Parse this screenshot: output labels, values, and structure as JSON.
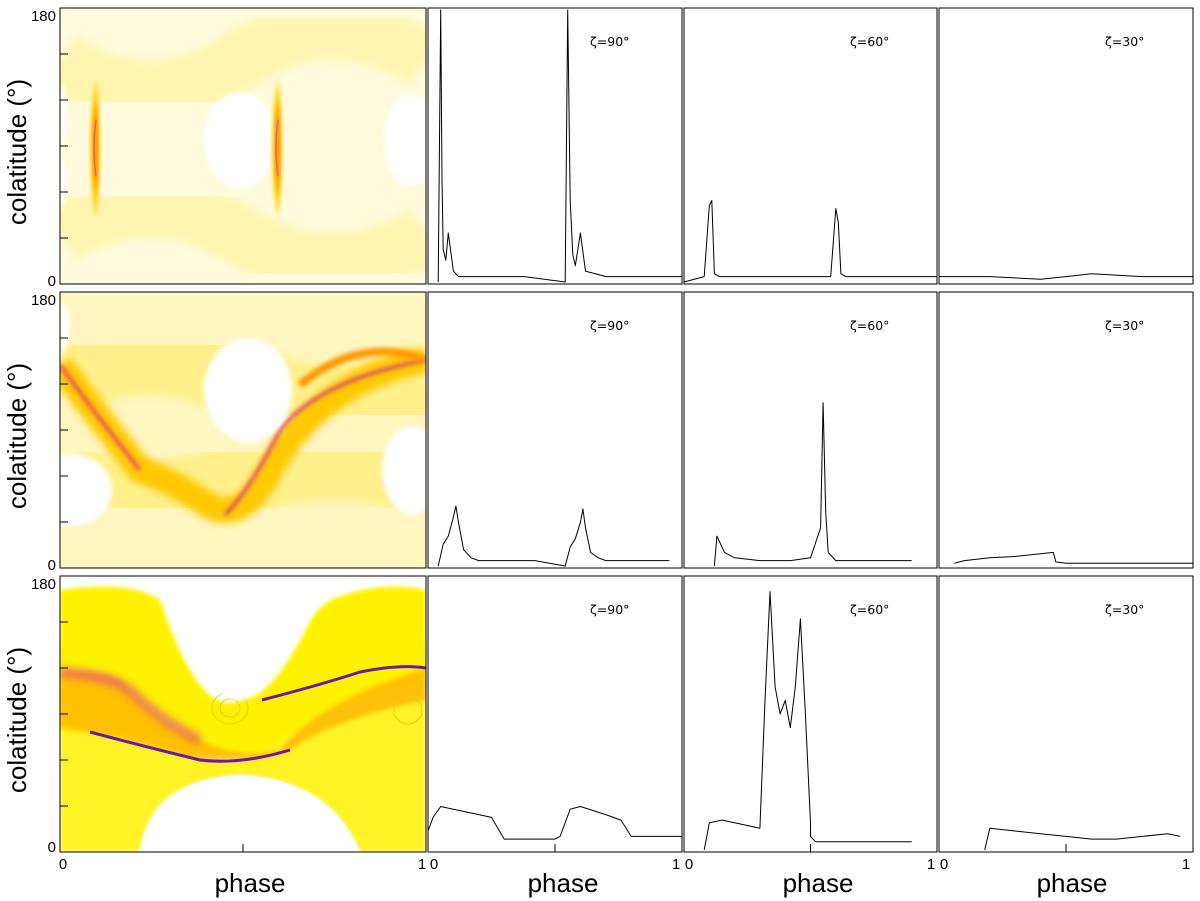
{
  "chart_data": {
    "type": "grid",
    "rows": 3,
    "columns": 4,
    "sky_maps": {
      "type": "heatmap",
      "ylabel": "colatitude (°)",
      "ylim": [
        0,
        180
      ],
      "yticks_labeled": [
        "0",
        "180"
      ],
      "xlim": [
        0,
        1
      ],
      "colormap": [
        "#ffffff",
        "#fff8b0",
        "#ffee00",
        "#ff9900",
        "#e0007a",
        "#5a00a0"
      ]
    },
    "light_curve_labels": [
      "ζ=90°",
      "ζ=60°",
      "ζ=30°"
    ],
    "x_axis": {
      "label": "phase",
      "ticks": [
        "0",
        "1"
      ],
      "xlim": [
        0,
        1
      ]
    },
    "panels": [
      {
        "row": 0,
        "zeta": "ζ=90°",
        "type": "line",
        "x": [
          0.04,
          0.05,
          0.055,
          0.06,
          0.07,
          0.08,
          0.1,
          0.12,
          0.2,
          0.38,
          0.54,
          0.55,
          0.56,
          0.57,
          0.58,
          0.6,
          0.62,
          0.7,
          0.9,
          1.0
        ],
        "y": [
          0,
          1.0,
          0.38,
          0.12,
          0.08,
          0.18,
          0.04,
          0.02,
          0.02,
          0.02,
          0,
          1.0,
          0.3,
          0.1,
          0.06,
          0.18,
          0.04,
          0.02,
          0.02,
          0.02
        ]
      },
      {
        "row": 0,
        "zeta": "ζ=60°",
        "type": "line",
        "x": [
          0.0,
          0.08,
          0.1,
          0.11,
          0.12,
          0.14,
          0.2,
          0.58,
          0.6,
          0.61,
          0.62,
          0.64,
          0.7,
          1.0
        ],
        "y": [
          0,
          0.02,
          0.28,
          0.3,
          0.03,
          0.02,
          0.02,
          0.02,
          0.27,
          0.22,
          0.03,
          0.02,
          0.02,
          0.02
        ]
      },
      {
        "row": 0,
        "zeta": "ζ=30°",
        "type": "line",
        "x": [
          0.0,
          0.2,
          0.4,
          0.5,
          0.6,
          0.8,
          1.0
        ],
        "y": [
          0.02,
          0.02,
          0.01,
          0.02,
          0.03,
          0.02,
          0.02
        ]
      },
      {
        "row": 1,
        "zeta": "ζ=90°",
        "type": "line",
        "x": [
          0.04,
          0.06,
          0.08,
          0.1,
          0.11,
          0.12,
          0.14,
          0.17,
          0.2,
          0.3,
          0.42,
          0.54,
          0.56,
          0.58,
          0.6,
          0.61,
          0.62,
          0.64,
          0.67,
          0.7,
          0.8,
          0.95
        ],
        "y": [
          0,
          0.08,
          0.11,
          0.18,
          0.22,
          0.16,
          0.06,
          0.03,
          0.02,
          0.02,
          0.02,
          0,
          0.07,
          0.1,
          0.16,
          0.21,
          0.14,
          0.05,
          0.03,
          0.02,
          0.02,
          0.02
        ]
      },
      {
        "row": 1,
        "zeta": "ζ=60°",
        "type": "line",
        "x": [
          0.12,
          0.13,
          0.14,
          0.16,
          0.2,
          0.3,
          0.42,
          0.5,
          0.54,
          0.55,
          0.56,
          0.57,
          0.6,
          0.7,
          0.9
        ],
        "y": [
          0,
          0.11,
          0.09,
          0.05,
          0.03,
          0.02,
          0.02,
          0.03,
          0.14,
          0.6,
          0.2,
          0.05,
          0.02,
          0.02,
          0.02
        ]
      },
      {
        "row": 1,
        "zeta": "ζ=30°",
        "type": "line",
        "x": [
          0.06,
          0.1,
          0.2,
          0.3,
          0.4,
          0.45,
          0.46,
          0.5,
          0.6,
          0.8,
          1.0
        ],
        "y": [
          0.01,
          0.02,
          0.03,
          0.035,
          0.045,
          0.05,
          0.015,
          0.01,
          0.01,
          0.01,
          0.01
        ]
      },
      {
        "row": 2,
        "zeta": "ζ=90°",
        "type": "line",
        "x": [
          0.0,
          0.02,
          0.05,
          0.1,
          0.2,
          0.25,
          0.3,
          0.4,
          0.5,
          0.52,
          0.56,
          0.6,
          0.7,
          0.76,
          0.8,
          0.9,
          1.0
        ],
        "y": [
          0.07,
          0.12,
          0.16,
          0.15,
          0.13,
          0.12,
          0.04,
          0.04,
          0.04,
          0.05,
          0.15,
          0.16,
          0.13,
          0.11,
          0.05,
          0.05,
          0.05
        ]
      },
      {
        "row": 2,
        "zeta": "ζ=60°",
        "type": "line",
        "x": [
          0.08,
          0.1,
          0.15,
          0.2,
          0.3,
          0.32,
          0.34,
          0.36,
          0.38,
          0.4,
          0.42,
          0.44,
          0.46,
          0.48,
          0.5,
          0.5,
          0.52,
          0.7,
          0.9
        ],
        "y": [
          0,
          0.1,
          0.11,
          0.1,
          0.08,
          0.55,
          0.95,
          0.6,
          0.5,
          0.55,
          0.45,
          0.6,
          0.85,
          0.5,
          0.1,
          0.05,
          0.03,
          0.03,
          0.03
        ]
      },
      {
        "row": 2,
        "zeta": "ζ=30°",
        "type": "line",
        "x": [
          0.18,
          0.2,
          0.3,
          0.4,
          0.5,
          0.6,
          0.7,
          0.8,
          0.9,
          0.95
        ],
        "y": [
          0,
          0.08,
          0.07,
          0.06,
          0.05,
          0.04,
          0.04,
          0.05,
          0.06,
          0.05
        ]
      }
    ]
  }
}
